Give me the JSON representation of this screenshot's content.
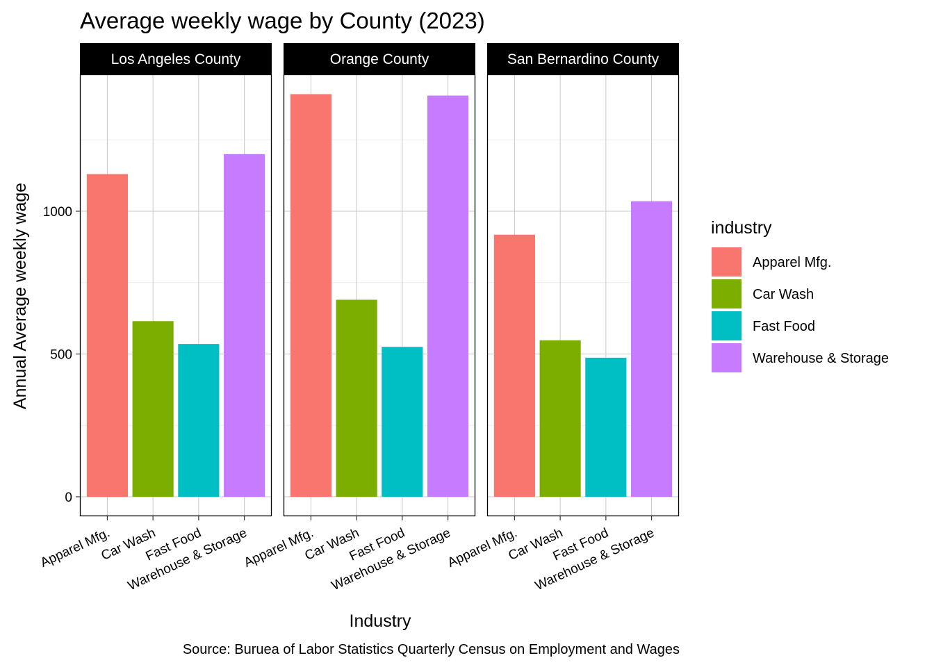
{
  "chart_data": {
    "type": "bar",
    "title": "Average weekly wage by County (2023)",
    "xlabel": "Industry",
    "ylabel": "Annual Average weekly wage",
    "caption": "Source: Buruea of Labor Statistics Quarterly Census on Employment and Wages",
    "legend_title": "industry",
    "legend_position": "right",
    "grid": true,
    "ylim": [
      -68,
      1480
    ],
    "y_ticks": [
      0,
      500,
      1000
    ],
    "y_tick_labels": [
      "0",
      "500",
      "1000"
    ],
    "categories": [
      "Apparel Mfg.",
      "Car Wash",
      "Fast Food",
      "Warehouse & Storage"
    ],
    "colors": [
      "#F8766D",
      "#7CAE00",
      "#00BFC4",
      "#C77CFF"
    ],
    "facets": [
      {
        "name": "Los Angeles County",
        "values": [
          1130,
          615,
          535,
          1200
        ]
      },
      {
        "name": "Orange County",
        "values": [
          1410,
          690,
          525,
          1405
        ]
      },
      {
        "name": "San Bernardino County",
        "values": [
          918,
          548,
          487,
          1035
        ]
      }
    ]
  }
}
